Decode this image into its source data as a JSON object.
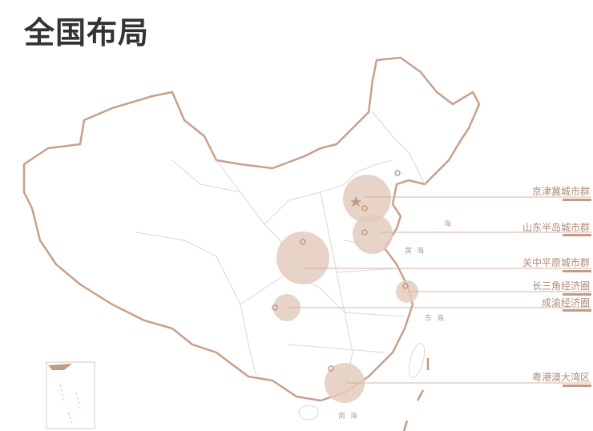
{
  "title": "全国布局",
  "colors": {
    "accent": "#c49a82",
    "circle_fill": "#e3cbbd",
    "border": "#c8a08a",
    "province_line": "#d8d8d8"
  },
  "regions": [
    {
      "name": "京津冀城市群"
    },
    {
      "name": "山东半岛城市群"
    },
    {
      "name": "关中平原城市群"
    },
    {
      "name": "长三角经济圈"
    },
    {
      "name": "成渝经济圈"
    },
    {
      "name": "粤港澳大湾区"
    }
  ],
  "seas": [
    "海",
    "黄海",
    "东海",
    "南海"
  ]
}
